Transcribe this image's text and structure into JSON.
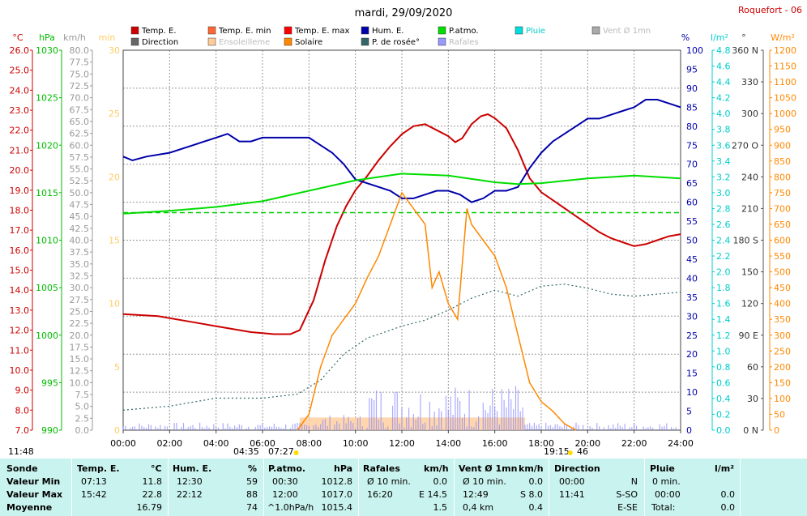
{
  "chart_data": {
    "type": "line",
    "title": "mardi, 29/09/2020",
    "station": "Roquefort - 06",
    "x_ticks": [
      "00:00",
      "02:00",
      "04:00",
      "06:00",
      "08:00",
      "10:00",
      "12:00",
      "14:00",
      "16:00",
      "18:00",
      "20:00",
      "22:00",
      "24:00"
    ],
    "legend": [
      {
        "label": "Temp. E.",
        "color": "#cc0000"
      },
      {
        "label": "Temp. E. min",
        "color": "#ff6633"
      },
      {
        "label": "Temp. E. max",
        "color": "#ff0000"
      },
      {
        "label": "Hum. E.",
        "color": "#0000aa"
      },
      {
        "label": "P.atmo.",
        "color": "#00dd00"
      },
      {
        "label": "Pluie",
        "color": "#00dddd"
      },
      {
        "label": "Vent Ø 1mn",
        "color": "#aaaaaa"
      },
      {
        "label": "Direction",
        "color": "#666666"
      },
      {
        "label": "Ensoleilleme",
        "color": "#ffcc99"
      },
      {
        "label": "Solaire",
        "color": "#ff8800"
      },
      {
        "label": "P. de rosée°",
        "color": "#336666"
      },
      {
        "label": "Rafales",
        "color": "#9999ff"
      }
    ],
    "axes": {
      "temp": {
        "unit": "°C",
        "min": 7.0,
        "max": 26.0,
        "step": 1.0,
        "color": "#cc0000"
      },
      "press": {
        "unit": "hPa",
        "min": 990,
        "max": 1030,
        "step": 5,
        "color": "#00bb00"
      },
      "wind": {
        "unit": "km/h",
        "min": 0.0,
        "max": 80.0,
        "step": 2.5,
        "color": "#999999"
      },
      "sun": {
        "unit": "min",
        "min": 0,
        "max": 30,
        "step": 5,
        "color": "#ffcc66"
      },
      "hum": {
        "unit": "%",
        "min": 0,
        "max": 100,
        "step": 5,
        "color": "#0000aa"
      },
      "rain": {
        "unit": "l/m²",
        "min": 0.0,
        "max": 4.8,
        "step": 0.2,
        "color": "#00cccc"
      },
      "dir": {
        "unit": "°",
        "ticks": [
          "0 N",
          "30",
          "60",
          "90 E",
          "120",
          "150",
          "180 S",
          "210",
          "240",
          "270 O",
          "300",
          "330",
          "360 N"
        ]
      },
      "solar": {
        "unit": "W/m²",
        "min": 0,
        "max": 1200,
        "step": 50,
        "color": "#ff8800"
      }
    },
    "series": [
      {
        "name": "Temp. E.",
        "axis": "temp",
        "color": "#cc0000",
        "points": [
          [
            0,
            12.8
          ],
          [
            1.5,
            12.7
          ],
          [
            3,
            12.4
          ],
          [
            4.5,
            12.1
          ],
          [
            5.5,
            11.9
          ],
          [
            6.5,
            11.8
          ],
          [
            7.2,
            11.8
          ],
          [
            7.6,
            12.0
          ],
          [
            8.2,
            13.5
          ],
          [
            8.7,
            15.5
          ],
          [
            9.2,
            17.2
          ],
          [
            9.6,
            18.2
          ],
          [
            10,
            19.0
          ],
          [
            10.5,
            19.7
          ],
          [
            11,
            20.5
          ],
          [
            11.5,
            21.2
          ],
          [
            12,
            21.8
          ],
          [
            12.5,
            22.2
          ],
          [
            13,
            22.3
          ],
          [
            13.5,
            22.0
          ],
          [
            14,
            21.7
          ],
          [
            14.3,
            21.4
          ],
          [
            14.6,
            21.6
          ],
          [
            15,
            22.3
          ],
          [
            15.4,
            22.7
          ],
          [
            15.7,
            22.8
          ],
          [
            16,
            22.6
          ],
          [
            16.5,
            22.1
          ],
          [
            17,
            21.0
          ],
          [
            17.5,
            19.6
          ],
          [
            18,
            18.9
          ],
          [
            18.5,
            18.5
          ],
          [
            19,
            18.1
          ],
          [
            19.5,
            17.7
          ],
          [
            20,
            17.3
          ],
          [
            20.5,
            16.9
          ],
          [
            21,
            16.6
          ],
          [
            21.5,
            16.4
          ],
          [
            22,
            16.2
          ],
          [
            22.5,
            16.3
          ],
          [
            23,
            16.5
          ],
          [
            23.5,
            16.7
          ],
          [
            24,
            16.8
          ]
        ]
      },
      {
        "name": "Hum. E.",
        "axis": "hum",
        "color": "#0000aa",
        "points": [
          [
            0,
            72
          ],
          [
            0.4,
            71
          ],
          [
            1,
            72
          ],
          [
            2,
            73
          ],
          [
            3,
            75
          ],
          [
            4,
            77
          ],
          [
            4.5,
            78
          ],
          [
            5,
            76
          ],
          [
            5.5,
            76
          ],
          [
            6,
            77
          ],
          [
            7,
            77
          ],
          [
            7.5,
            77
          ],
          [
            8,
            77
          ],
          [
            8.5,
            75
          ],
          [
            9,
            73
          ],
          [
            9.5,
            70
          ],
          [
            10,
            66
          ],
          [
            11,
            64
          ],
          [
            11.5,
            63
          ],
          [
            12,
            61
          ],
          [
            12.5,
            61
          ],
          [
            13,
            62
          ],
          [
            13.5,
            63
          ],
          [
            14,
            63
          ],
          [
            14.5,
            62
          ],
          [
            15,
            60
          ],
          [
            15.5,
            61
          ],
          [
            16,
            63
          ],
          [
            16.5,
            63
          ],
          [
            17,
            64
          ],
          [
            17.5,
            69
          ],
          [
            18,
            73
          ],
          [
            18.5,
            76
          ],
          [
            19,
            78
          ],
          [
            19.5,
            80
          ],
          [
            20,
            82
          ],
          [
            20.5,
            82
          ],
          [
            21,
            83
          ],
          [
            21.5,
            84
          ],
          [
            22,
            85
          ],
          [
            22.5,
            87
          ],
          [
            23,
            87
          ],
          [
            23.5,
            86
          ],
          [
            24,
            85
          ]
        ]
      },
      {
        "name": "P.atmo.",
        "axis": "press",
        "color": "#00dd00",
        "points": [
          [
            0,
            1012.8
          ],
          [
            2,
            1013.1
          ],
          [
            4,
            1013.5
          ],
          [
            6,
            1014.1
          ],
          [
            8,
            1015.2
          ],
          [
            10,
            1016.3
          ],
          [
            12,
            1017.0
          ],
          [
            14,
            1016.8
          ],
          [
            16,
            1016.1
          ],
          [
            17,
            1015.9
          ],
          [
            18,
            1016.0
          ],
          [
            20,
            1016.5
          ],
          [
            22,
            1016.8
          ],
          [
            24,
            1016.5
          ]
        ]
      },
      {
        "name": "P.atmo. moyenne",
        "axis": "press",
        "color": "#00cc00",
        "dashed": true,
        "points": [
          [
            0,
            1012.9
          ],
          [
            24,
            1012.9
          ]
        ]
      },
      {
        "name": "P. de rosée°",
        "axis": "temp",
        "color": "#336666",
        "dotted": true,
        "points": [
          [
            0,
            8.0
          ],
          [
            2,
            8.2
          ],
          [
            4,
            8.6
          ],
          [
            6,
            8.6
          ],
          [
            7.5,
            8.8
          ],
          [
            8.5,
            9.5
          ],
          [
            9.5,
            10.8
          ],
          [
            10.5,
            11.6
          ],
          [
            12,
            12.2
          ],
          [
            13,
            12.5
          ],
          [
            14,
            13.0
          ],
          [
            15,
            13.6
          ],
          [
            16,
            14.0
          ],
          [
            17,
            13.7
          ],
          [
            18,
            14.2
          ],
          [
            19,
            14.3
          ],
          [
            20,
            14.1
          ],
          [
            21,
            13.8
          ],
          [
            22,
            13.7
          ],
          [
            23,
            13.8
          ],
          [
            24,
            13.9
          ]
        ]
      },
      {
        "name": "Solaire",
        "axis": "solar",
        "color": "#ff8800",
        "points": [
          [
            7.5,
            0
          ],
          [
            8,
            50
          ],
          [
            8.5,
            200
          ],
          [
            9,
            300
          ],
          [
            9.5,
            350
          ],
          [
            10,
            400
          ],
          [
            10.5,
            480
          ],
          [
            11,
            550
          ],
          [
            11.5,
            650
          ],
          [
            12,
            750
          ],
          [
            12.5,
            700
          ],
          [
            13,
            650
          ],
          [
            13.3,
            450
          ],
          [
            13.6,
            500
          ],
          [
            14,
            400
          ],
          [
            14.4,
            350
          ],
          [
            14.8,
            700
          ],
          [
            15,
            650
          ],
          [
            15.5,
            600
          ],
          [
            16,
            550
          ],
          [
            16.5,
            450
          ],
          [
            17,
            300
          ],
          [
            17.5,
            150
          ],
          [
            18,
            90
          ],
          [
            18.5,
            60
          ],
          [
            19,
            20
          ],
          [
            19.5,
            0
          ]
        ]
      }
    ],
    "summary": {
      "headers": [
        "Sonde",
        "Temp. E.",
        "°C",
        "Hum. E.",
        "%",
        "P.atmo.",
        "hPa",
        "Rafales",
        "km/h",
        "Vent Ø 1mn",
        "km/h",
        "Direction",
        "Pluie",
        "l/m²"
      ],
      "rows": [
        {
          "label": "Valeur Min",
          "temp_time": "07:13",
          "temp": "11.8",
          "hum_time": "12:30",
          "hum": "59",
          "press_time": "00:30",
          "press": "1012.8",
          "gust_note": "Ø 10 min.",
          "gust": "0.0",
          "wind_note": "Ø 10 min.",
          "wind": "0.0",
          "dir_time": "00:00",
          "dir": "N",
          "rain_time": "0 min.",
          "rain": ""
        },
        {
          "label": "Valeur Max",
          "temp_time": "15:42",
          "temp": "22.8",
          "hum_time": "22:12",
          "hum": "88",
          "press_time": "12:00",
          "press": "1017.0",
          "gust_note": "16:20",
          "gust": "E 14.5",
          "wind_note": "12:49",
          "wind": "S 8.0",
          "dir_time": "11:41",
          "dir": "S-SO",
          "rain_time": "00:00",
          "rain": "0.0"
        },
        {
          "label": "Moyenne",
          "temp_time": "",
          "temp": "16.79",
          "hum_time": "",
          "hum": "74",
          "press_time": "^1.0hPa/h",
          "press": "1015.4",
          "gust_note": "",
          "gust": "1.5",
          "wind_note": "0,4 km",
          "wind": "0.4",
          "dir_time": "",
          "dir": "E-SE",
          "rain_time": "Total:",
          "rain": "0.0"
        }
      ]
    },
    "sun_events": {
      "sunrise": "07:27",
      "sunset": "19:15",
      "day_start": "11:48",
      "moon": "04:35",
      "moon_note": "46"
    }
  }
}
